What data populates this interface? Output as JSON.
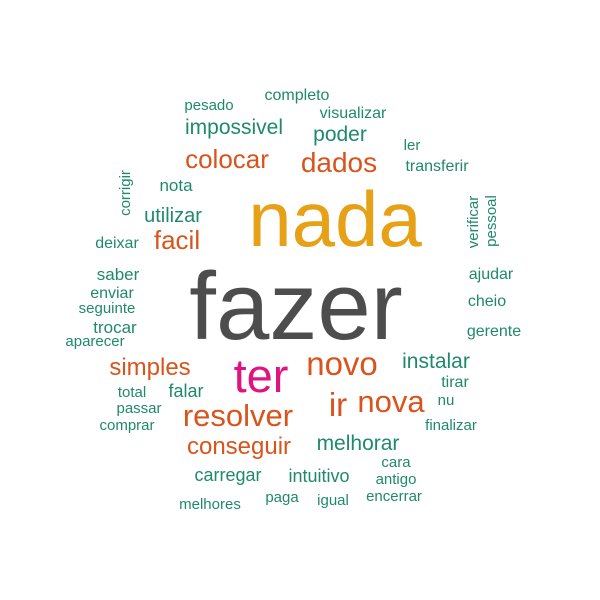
{
  "colors": {
    "gray": "#4d4d4d",
    "orange": "#e6a117",
    "rust": "#d9541c",
    "magenta": "#e0147f",
    "green": "#1f8a6a"
  },
  "words": [
    {
      "text": "fazer",
      "color": "gray"
    },
    {
      "text": "nada",
      "color": "orange"
    },
    {
      "text": "ter",
      "color": "magenta"
    },
    {
      "text": "novo",
      "color": "rust"
    },
    {
      "text": "nova",
      "color": "rust"
    },
    {
      "text": "resolver",
      "color": "rust"
    },
    {
      "text": "ir",
      "color": "rust"
    },
    {
      "text": "dados",
      "color": "rust"
    },
    {
      "text": "colocar",
      "color": "rust"
    },
    {
      "text": "facil",
      "color": "rust"
    },
    {
      "text": "simples",
      "color": "rust"
    },
    {
      "text": "conseguir",
      "color": "rust"
    },
    {
      "text": "melhorar",
      "color": "green"
    },
    {
      "text": "instalar",
      "color": "green"
    },
    {
      "text": "impossivel",
      "color": "green"
    },
    {
      "text": "poder",
      "color": "green"
    },
    {
      "text": "utilizar",
      "color": "green"
    },
    {
      "text": "carregar",
      "color": "green"
    },
    {
      "text": "intuitivo",
      "color": "green"
    },
    {
      "text": "falar",
      "color": "green"
    },
    {
      "text": "nota",
      "color": "green"
    },
    {
      "text": "trocar",
      "color": "green"
    },
    {
      "text": "saber",
      "color": "green"
    },
    {
      "text": "deixar",
      "color": "green"
    },
    {
      "text": "enviar",
      "color": "green"
    },
    {
      "text": "ajudar",
      "color": "green"
    },
    {
      "text": "cheio",
      "color": "green"
    },
    {
      "text": "gerente",
      "color": "green"
    },
    {
      "text": "tirar",
      "color": "green"
    },
    {
      "text": "transferir",
      "color": "green"
    },
    {
      "text": "completo",
      "color": "green"
    },
    {
      "text": "visualizar",
      "color": "green"
    },
    {
      "text": "pesado",
      "color": "green"
    },
    {
      "text": "ler",
      "color": "green"
    },
    {
      "text": "seguinte",
      "color": "green"
    },
    {
      "text": "aparecer",
      "color": "green"
    },
    {
      "text": "total",
      "color": "green"
    },
    {
      "text": "passar",
      "color": "green"
    },
    {
      "text": "comprar",
      "color": "green"
    },
    {
      "text": "nu",
      "color": "green"
    },
    {
      "text": "finalizar",
      "color": "green"
    },
    {
      "text": "cara",
      "color": "green"
    },
    {
      "text": "antigo",
      "color": "green"
    },
    {
      "text": "encerrar",
      "color": "green"
    },
    {
      "text": "igual",
      "color": "green"
    },
    {
      "text": "paga",
      "color": "green"
    },
    {
      "text": "melhores",
      "color": "green"
    },
    {
      "text": "corrigir",
      "color": "green"
    },
    {
      "text": "verificar",
      "color": "green"
    },
    {
      "text": "pessoal",
      "color": "green"
    }
  ]
}
